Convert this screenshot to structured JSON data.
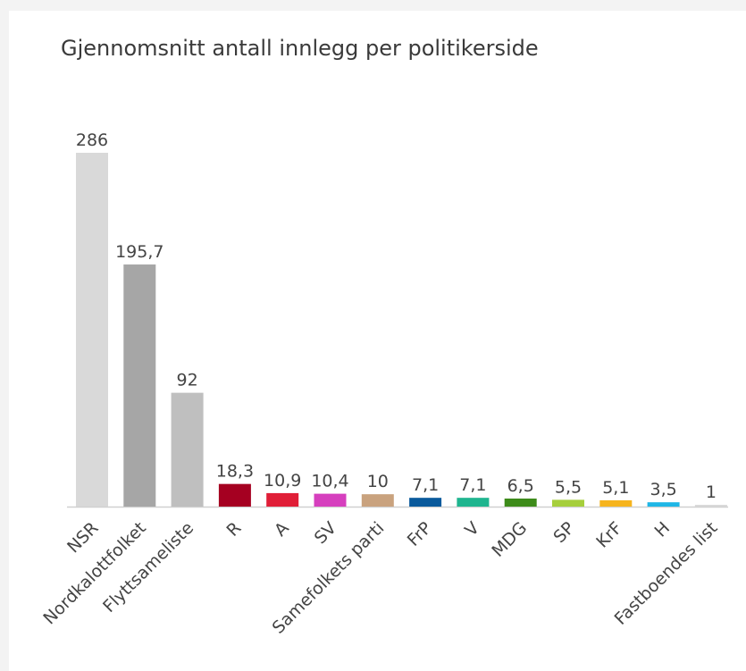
{
  "chart_data": {
    "type": "bar",
    "title": "Gjennomsnitt antall innlegg per politikerside",
    "categories": [
      "NSR",
      "Nordkalottfolket",
      "Flyttsameliste",
      "R",
      "A",
      "SV",
      "Samefolkets parti",
      "FrP",
      "V",
      "MDG",
      "SP",
      "KrF",
      "H",
      "Fastboendes list"
    ],
    "values": [
      286,
      195.7,
      92,
      18.3,
      10.9,
      10.4,
      10,
      7.1,
      7.1,
      6.5,
      5.5,
      5.1,
      3.5,
      1
    ],
    "value_labels": [
      "286",
      "195,7",
      "92",
      "18,3",
      "10,9",
      "10,4",
      "10",
      "7,1",
      "7,1",
      "6,5",
      "5,5",
      "5,1",
      "3,5",
      "1"
    ],
    "colors": [
      "#d9d9d9",
      "#a6a6a6",
      "#bfbfbf",
      "#a50021",
      "#e01e37",
      "#d63fbe",
      "#c9a27e",
      "#0a5a9c",
      "#1fb58f",
      "#3d8b1a",
      "#a6cf3c",
      "#f6b41e",
      "#1fb6e6",
      "#d9d9d9"
    ]
  }
}
